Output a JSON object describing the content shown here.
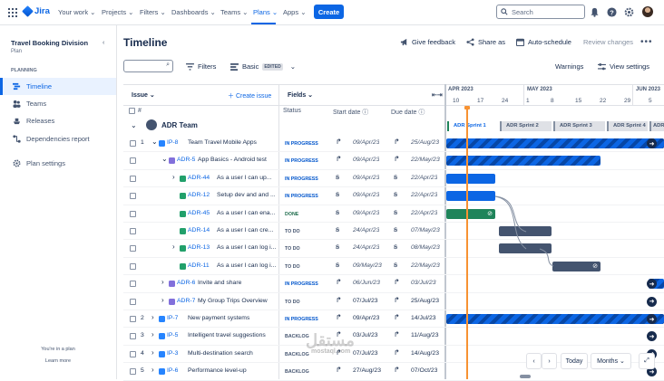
{
  "nav": {
    "brand": "Jira",
    "items": [
      "Your work",
      "Projects",
      "Filters",
      "Dashboards",
      "Teams",
      "Plans",
      "Apps"
    ],
    "create_label": "Create",
    "search_placeholder": "Search"
  },
  "sidebar": {
    "project_name": "Travel Booking Division",
    "project_type": "Plan",
    "section": "PLANNING",
    "items": [
      "Timeline",
      "Teams",
      "Releases",
      "Dependencies report"
    ],
    "settings": "Plan settings",
    "footer_note": "You're in a plan",
    "footer_link": "Learn more"
  },
  "header": {
    "title": "Timeline",
    "give_feedback": "Give feedback",
    "share_as": "Share as",
    "auto_schedule": "Auto-schedule",
    "review_changes": "Review changes"
  },
  "toolbar": {
    "filters": "Filters",
    "view": "Basic",
    "edited": "EDITED",
    "warnings": "Warnings",
    "view_settings": "View settings"
  },
  "table": {
    "col_issue": "Issue",
    "create_issue": "Create issue",
    "col_fields": "Fields",
    "col_status": "Status",
    "col_start": "Start date",
    "col_due": "Due date",
    "team": "ADR Team",
    "rows": [
      {
        "num": "1",
        "key": "IP-8",
        "title": "Team Travel Mobile Apps",
        "status": "IN PROGRESS",
        "start": "09/Apr/23",
        "due": "25/Aug/23"
      },
      {
        "num": "",
        "key": "ADR-5",
        "title": "App Basics - Android test",
        "status": "IN PROGRESS",
        "start": "09/Apr/23",
        "due": "22/May/23"
      },
      {
        "num": "",
        "key": "ADR-44",
        "title": "As a user I can up...",
        "status": "IN PROGRESS",
        "start": "09/Apr/23",
        "due": "22/Apr/23"
      },
      {
        "num": "",
        "key": "ADR-12",
        "title": "Setup dev and and ...",
        "status": "IN PROGRESS",
        "start": "09/Apr/23",
        "due": "22/Apr/23"
      },
      {
        "num": "",
        "key": "ADR-45",
        "title": "As a user I can ena...",
        "status": "DONE",
        "start": "09/Apr/23",
        "due": "22/Apr/23"
      },
      {
        "num": "",
        "key": "ADR-14",
        "title": "As a user I can cre...",
        "status": "TO DO",
        "start": "24/Apr/23",
        "due": "07/May/23"
      },
      {
        "num": "",
        "key": "ADR-13",
        "title": "As a user I can log i...",
        "status": "TO DO",
        "start": "24/Apr/23",
        "due": "08/May/23"
      },
      {
        "num": "",
        "key": "ADR-11",
        "title": "As a user I can log i...",
        "status": "TO DO",
        "start": "09/May/23",
        "due": "22/May/23"
      },
      {
        "num": "",
        "key": "ADR-6",
        "title": "Invite and share",
        "status": "IN PROGRESS",
        "start": "06/Jun/23",
        "due": "03/Jul/23"
      },
      {
        "num": "",
        "key": "ADR-7",
        "title": "My Group Trips Overview",
        "status": "TO DO",
        "start": "07/Jul/23",
        "due": "25/Aug/23"
      },
      {
        "num": "2",
        "key": "IP-7",
        "title": "New payment systems",
        "status": "IN PROGRESS",
        "start": "09/Apr/23",
        "due": "14/Jul/23"
      },
      {
        "num": "3",
        "key": "IP-5",
        "title": "Intelligent travel suggestions",
        "status": "BACKLOG",
        "start": "03/Jul/23",
        "due": "11/Aug/23"
      },
      {
        "num": "4",
        "key": "IP-3",
        "title": "Multi-destination search",
        "status": "BACKLOG",
        "start": "07/Jul/23",
        "due": "14/Aug/23"
      },
      {
        "num": "5",
        "key": "IP-6",
        "title": "Performance level-up",
        "status": "BACKLOG",
        "start": "27/Aug/23",
        "due": "07/Oct/23"
      }
    ]
  },
  "timeline": {
    "months": [
      "APR 2023",
      "MAY 2023",
      "JUN 2023"
    ],
    "days": [
      "10",
      "17",
      "24",
      "1",
      "8",
      "15",
      "22",
      "29",
      "5"
    ],
    "sprints": [
      "ADR Sprint 1",
      "ADR Sprint 2",
      "ADR Sprint 3",
      "ADR Sprint 4",
      "ADR"
    ],
    "today": "Today",
    "scale": "Months"
  },
  "watermark": {
    "main": "مستقل",
    "sub": "mostaql.com"
  }
}
